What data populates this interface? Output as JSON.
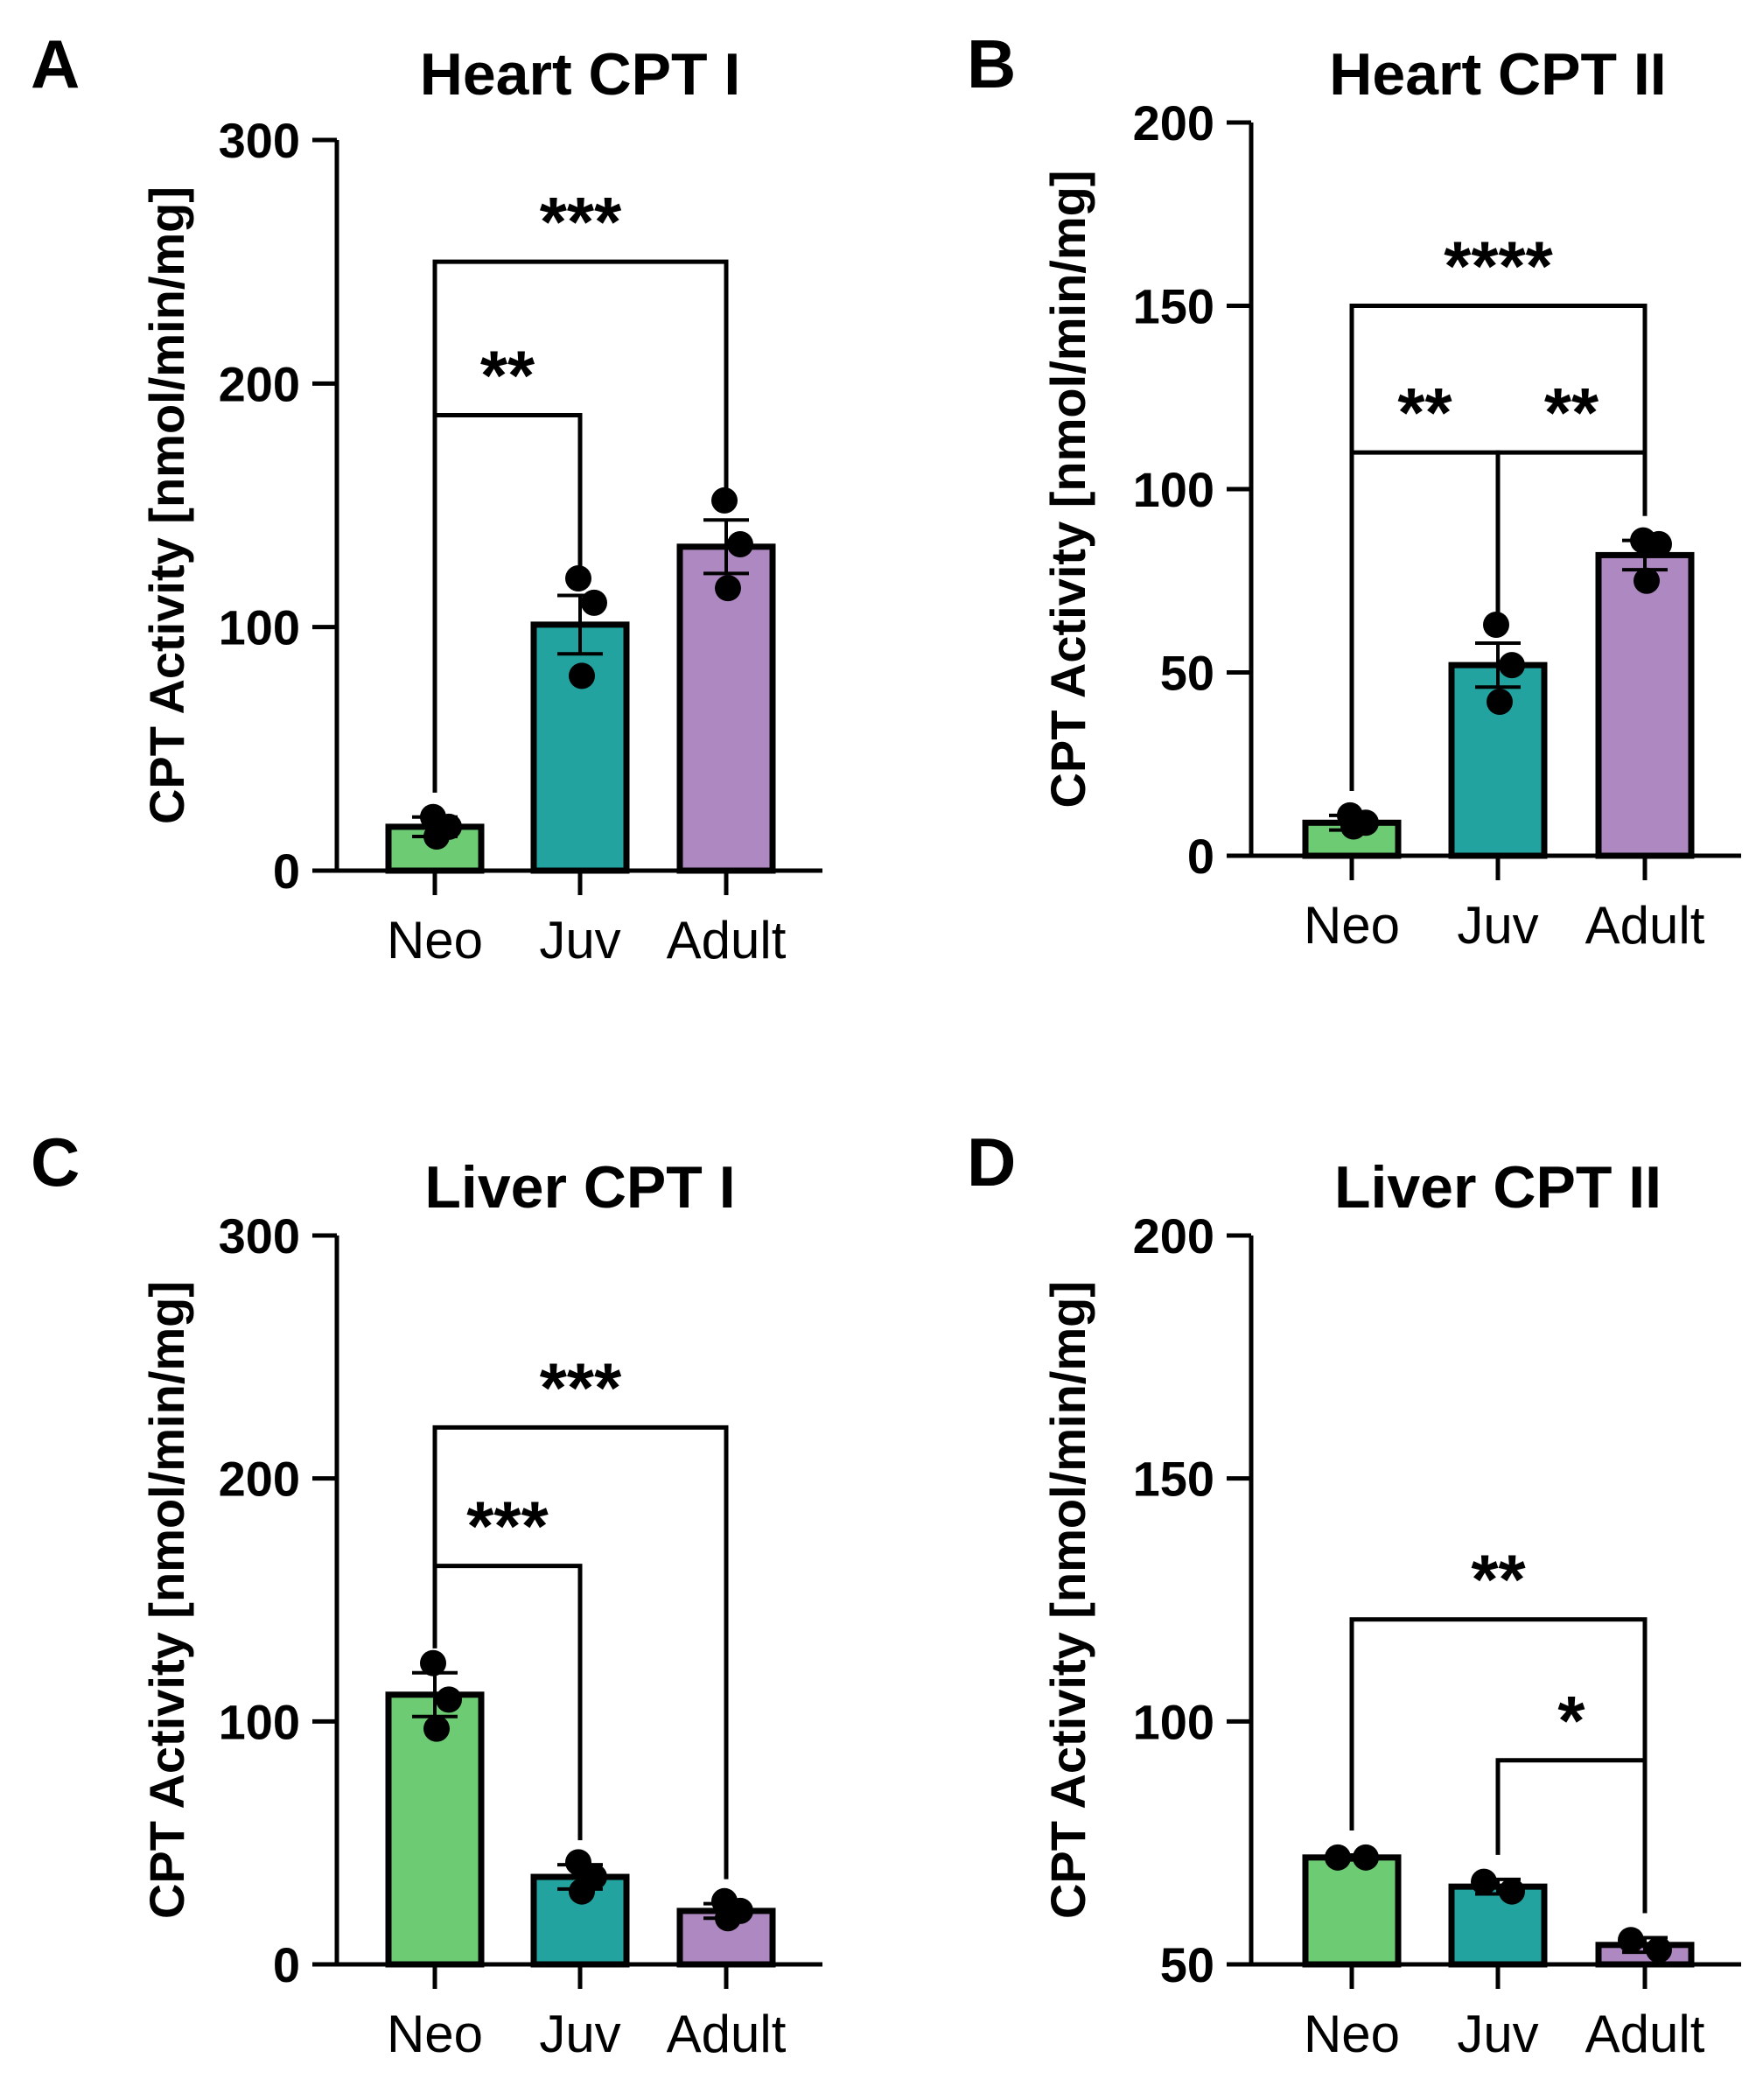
{
  "chart_data": [
    {
      "type": "bar",
      "panel": "A",
      "title": "Heart CPT I",
      "xlabel": "",
      "ylabel": "CPT Activity [nmol/min/mg]",
      "ylim": [
        0,
        300
      ],
      "yticks": [
        0,
        100,
        200,
        300
      ],
      "ytick_labels": [
        "0",
        "100",
        "200",
        "300"
      ],
      "categories": [
        "Neo",
        "Juv",
        "Adult"
      ],
      "values": [
        18,
        101,
        133
      ],
      "errors": [
        4,
        12,
        11
      ],
      "points": [
        [
          22,
          18,
          14
        ],
        [
          120,
          110,
          80
        ],
        [
          152,
          134,
          116
        ]
      ],
      "colors": [
        "#6DCB73",
        "#23A3A0",
        "#AE88C0"
      ],
      "significance": [
        {
          "from": 0,
          "to": 1,
          "label": "**",
          "y": 187
        },
        {
          "from": 0,
          "to": 2,
          "label": "***",
          "y": 250
        }
      ]
    },
    {
      "type": "bar",
      "panel": "B",
      "title": "Heart CPT II",
      "xlabel": "",
      "ylabel": "CPT Activity [nmol/min/mg]",
      "ylim": [
        0,
        200
      ],
      "yticks": [
        0,
        50,
        100,
        150,
        200
      ],
      "ytick_labels": [
        "0",
        "50",
        "100",
        "150",
        "200"
      ],
      "categories": [
        "Neo",
        "Juv",
        "Adult"
      ],
      "values": [
        9,
        52,
        82
      ],
      "errors": [
        2,
        6,
        4
      ],
      "points": [
        [
          11,
          9,
          8
        ],
        [
          63,
          52,
          42
        ],
        [
          86,
          85,
          75
        ]
      ],
      "colors": [
        "#6DCB73",
        "#23A3A0",
        "#AE88C0"
      ],
      "significance": [
        {
          "from": 0,
          "to": 1,
          "label": "**",
          "y": 110
        },
        {
          "from": 1,
          "to": 2,
          "label": "**",
          "y": 110
        },
        {
          "from": 0,
          "to": 2,
          "label": "****",
          "y": 150
        }
      ]
    },
    {
      "type": "bar",
      "panel": "C",
      "title": "Liver CPT I",
      "xlabel": "",
      "ylabel": "CPT Activity [nmol/min/mg]",
      "ylim": [
        0,
        300
      ],
      "yticks": [
        0,
        100,
        200,
        300
      ],
      "ytick_labels": [
        "0",
        "100",
        "200",
        "300"
      ],
      "categories": [
        "Neo",
        "Juv",
        "Adult"
      ],
      "values": [
        111,
        36,
        22
      ],
      "errors": [
        9,
        5,
        3
      ],
      "points": [
        [
          124,
          109,
          97
        ],
        [
          42,
          36,
          30
        ],
        [
          26,
          22,
          19
        ]
      ],
      "colors": [
        "#6DCB73",
        "#23A3A0",
        "#AE88C0"
      ],
      "significance": [
        {
          "from": 0,
          "to": 1,
          "label": "***",
          "y": 164
        },
        {
          "from": 0,
          "to": 2,
          "label": "***",
          "y": 221
        }
      ]
    },
    {
      "type": "bar",
      "panel": "D",
      "title": "Liver CPT II",
      "xlabel": "",
      "ylabel": "CPT Activity [nmol/min/mg]",
      "ylim": [
        50,
        200
      ],
      "yticks": [
        50,
        100,
        150,
        200
      ],
      "ytick_labels": [
        "50",
        "100",
        "150",
        "200"
      ],
      "categories": [
        "Neo",
        "Juv",
        "Adult"
      ],
      "values": [
        72,
        66,
        54
      ],
      "errors": [
        0.5,
        1.5,
        1.5
      ],
      "points": [
        [
          72,
          72
        ],
        [
          67,
          65
        ],
        [
          55,
          53
        ]
      ],
      "colors": [
        "#6DCB73",
        "#23A3A0",
        "#AE88C0"
      ],
      "significance": [
        {
          "from": 1,
          "to": 2,
          "label": "*",
          "y": 92
        },
        {
          "from": 0,
          "to": 2,
          "label": "**",
          "y": 121
        }
      ]
    }
  ]
}
